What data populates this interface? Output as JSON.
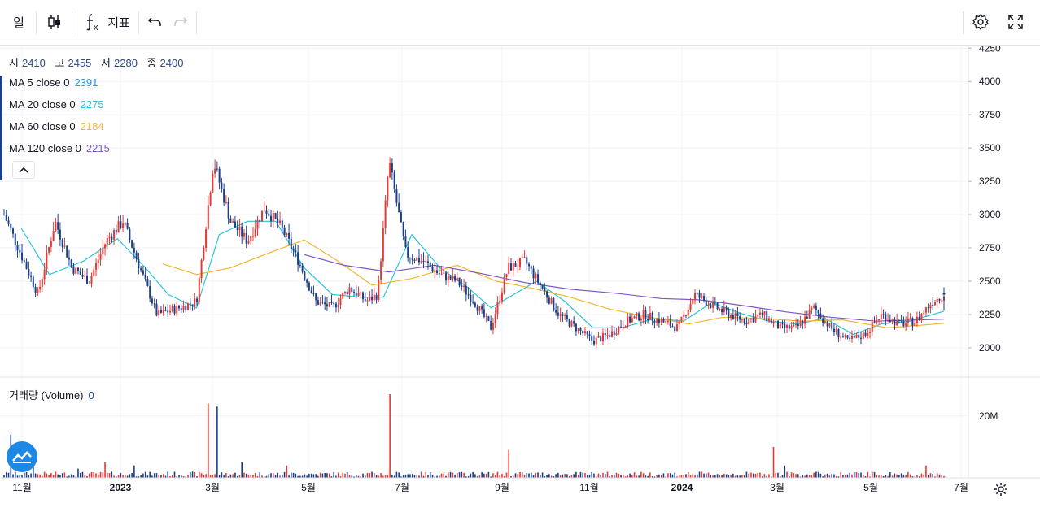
{
  "toolbar": {
    "interval_label": "일",
    "indicators_label": "지표",
    "icons": [
      "candles-icon",
      "fx-icon",
      "undo-icon",
      "redo-icon",
      "settings-icon",
      "fullscreen-icon"
    ]
  },
  "legend": {
    "ohlc": [
      {
        "label": "시",
        "value": "2410"
      },
      {
        "label": "고",
        "value": "2455"
      },
      {
        "label": "저",
        "value": "2280"
      },
      {
        "label": "종",
        "value": "2400"
      }
    ],
    "ma": [
      {
        "label": "MA 5 close 0",
        "value": "2391",
        "color": "#2196f3"
      },
      {
        "label": "MA 20 close 0",
        "value": "2275",
        "color": "#26c6da"
      },
      {
        "label": "MA 60 close 0",
        "value": "2184",
        "color": "#f2b72c"
      },
      {
        "label": "MA 120 close 0",
        "value": "2215",
        "color": "#7e57c2"
      }
    ],
    "volume_label": "거래량 (Volume)",
    "volume_value": "0"
  },
  "colors": {
    "up": "#e53935",
    "down": "#1a3f8c",
    "grid": "#f0f3fa",
    "axis_text": "#131722"
  },
  "chart_data": {
    "type": "candlestick",
    "price_axis": {
      "ticks": [
        2000,
        2250,
        2500,
        2750,
        3000,
        3250,
        3500,
        3750,
        4000,
        4250
      ],
      "labels": [
        "2000",
        "2250",
        "2500",
        "2750",
        "3000",
        "3250",
        "3500",
        "3750",
        "4000",
        "4250"
      ],
      "range": [
        1780,
        4270
      ]
    },
    "volume_axis": {
      "ticks": [
        "20M"
      ],
      "tick_values": [
        20000000
      ],
      "range": [
        0,
        32000000
      ]
    },
    "time_axis": {
      "labels": [
        "11월",
        "2023",
        "3월",
        "5월",
        "7월",
        "9월",
        "11월",
        "2024",
        "3월",
        "5월",
        "7월"
      ],
      "bold": [
        "2023",
        "2024"
      ]
    },
    "last": {
      "open": 2410,
      "high": 2455,
      "low": 2280,
      "close": 2400
    },
    "price_path": [
      {
        "m": 0,
        "p": 3000
      },
      {
        "m": 0.3,
        "p": 2700
      },
      {
        "m": 0.6,
        "p": 2400
      },
      {
        "m": 0.9,
        "p": 2950
      },
      {
        "m": 1.2,
        "p": 2600
      },
      {
        "m": 1.5,
        "p": 2500
      },
      {
        "m": 1.8,
        "p": 2800
      },
      {
        "m": 2.1,
        "p": 2950
      },
      {
        "m": 2.4,
        "p": 2600
      },
      {
        "m": 2.7,
        "p": 2250
      },
      {
        "m": 3.1,
        "p": 2300
      },
      {
        "m": 3.4,
        "p": 2350
      },
      {
        "m": 3.7,
        "p": 3400
      },
      {
        "m": 4.0,
        "p": 2950
      },
      {
        "m": 4.3,
        "p": 2800
      },
      {
        "m": 4.6,
        "p": 3050
      },
      {
        "m": 4.9,
        "p": 2900
      },
      {
        "m": 5.2,
        "p": 2650
      },
      {
        "m": 5.5,
        "p": 2350
      },
      {
        "m": 5.8,
        "p": 2300
      },
      {
        "m": 6.1,
        "p": 2450
      },
      {
        "m": 6.4,
        "p": 2350
      },
      {
        "m": 6.6,
        "p": 2400
      },
      {
        "m": 6.8,
        "p": 3400
      },
      {
        "m": 7.1,
        "p": 2700
      },
      {
        "m": 7.4,
        "p": 2650
      },
      {
        "m": 7.7,
        "p": 2550
      },
      {
        "m": 8.0,
        "p": 2500
      },
      {
        "m": 8.3,
        "p": 2350
      },
      {
        "m": 8.6,
        "p": 2150
      },
      {
        "m": 8.9,
        "p": 2600
      },
      {
        "m": 9.2,
        "p": 2650
      },
      {
        "m": 9.5,
        "p": 2450
      },
      {
        "m": 9.8,
        "p": 2250
      },
      {
        "m": 10.1,
        "p": 2150
      },
      {
        "m": 10.4,
        "p": 2050
      },
      {
        "m": 10.7,
        "p": 2100
      },
      {
        "m": 11.0,
        "p": 2200
      },
      {
        "m": 11.3,
        "p": 2250
      },
      {
        "m": 11.6,
        "p": 2200
      },
      {
        "m": 11.9,
        "p": 2150
      },
      {
        "m": 12.2,
        "p": 2400
      },
      {
        "m": 12.5,
        "p": 2320
      },
      {
        "m": 12.8,
        "p": 2250
      },
      {
        "m": 13.1,
        "p": 2200
      },
      {
        "m": 13.4,
        "p": 2250
      },
      {
        "m": 13.7,
        "p": 2150
      },
      {
        "m": 14.0,
        "p": 2150
      },
      {
        "m": 14.3,
        "p": 2300
      },
      {
        "m": 14.6,
        "p": 2150
      },
      {
        "m": 14.9,
        "p": 2050
      },
      {
        "m": 15.2,
        "p": 2100
      },
      {
        "m": 15.5,
        "p": 2250
      },
      {
        "m": 15.8,
        "p": 2180
      },
      {
        "m": 16.1,
        "p": 2200
      },
      {
        "m": 16.4,
        "p": 2350
      },
      {
        "m": 16.6,
        "p": 2400
      }
    ],
    "ma_paths": [
      {
        "name": "MA 20 close 0",
        "color": "#26c6da",
        "points": [
          {
            "m": 0.3,
            "p": 2900
          },
          {
            "m": 0.8,
            "p": 2550
          },
          {
            "m": 1.4,
            "p": 2650
          },
          {
            "m": 2.0,
            "p": 2820
          },
          {
            "m": 2.5,
            "p": 2600
          },
          {
            "m": 2.9,
            "p": 2400
          },
          {
            "m": 3.4,
            "p": 2300
          },
          {
            "m": 3.8,
            "p": 2850
          },
          {
            "m": 4.3,
            "p": 2950
          },
          {
            "m": 4.8,
            "p": 2950
          },
          {
            "m": 5.3,
            "p": 2600
          },
          {
            "m": 5.8,
            "p": 2400
          },
          {
            "m": 6.3,
            "p": 2380
          },
          {
            "m": 6.7,
            "p": 2380
          },
          {
            "m": 7.2,
            "p": 2850
          },
          {
            "m": 7.7,
            "p": 2600
          },
          {
            "m": 8.2,
            "p": 2450
          },
          {
            "m": 8.6,
            "p": 2300
          },
          {
            "m": 9.0,
            "p": 2400
          },
          {
            "m": 9.4,
            "p": 2500
          },
          {
            "m": 9.9,
            "p": 2350
          },
          {
            "m": 10.4,
            "p": 2150
          },
          {
            "m": 10.9,
            "p": 2150
          },
          {
            "m": 11.5,
            "p": 2220
          },
          {
            "m": 12.0,
            "p": 2200
          },
          {
            "m": 12.5,
            "p": 2340
          },
          {
            "m": 13.0,
            "p": 2260
          },
          {
            "m": 13.5,
            "p": 2200
          },
          {
            "m": 14.0,
            "p": 2180
          },
          {
            "m": 14.5,
            "p": 2220
          },
          {
            "m": 15.0,
            "p": 2100
          },
          {
            "m": 15.5,
            "p": 2180
          },
          {
            "m": 16.0,
            "p": 2200
          },
          {
            "m": 16.6,
            "p": 2275
          }
        ]
      },
      {
        "name": "MA 60 close 0",
        "color": "#f2b72c",
        "points": [
          {
            "m": 2.8,
            "p": 2630
          },
          {
            "m": 3.4,
            "p": 2550
          },
          {
            "m": 4.0,
            "p": 2600
          },
          {
            "m": 4.6,
            "p": 2700
          },
          {
            "m": 5.3,
            "p": 2810
          },
          {
            "m": 5.9,
            "p": 2650
          },
          {
            "m": 6.5,
            "p": 2470
          },
          {
            "m": 7.2,
            "p": 2520
          },
          {
            "m": 8.0,
            "p": 2620
          },
          {
            "m": 8.7,
            "p": 2500
          },
          {
            "m": 9.3,
            "p": 2450
          },
          {
            "m": 10.0,
            "p": 2380
          },
          {
            "m": 10.7,
            "p": 2290
          },
          {
            "m": 11.4,
            "p": 2230
          },
          {
            "m": 12.1,
            "p": 2180
          },
          {
            "m": 12.7,
            "p": 2230
          },
          {
            "m": 13.4,
            "p": 2220
          },
          {
            "m": 14.1,
            "p": 2200
          },
          {
            "m": 14.8,
            "p": 2210
          },
          {
            "m": 15.6,
            "p": 2150
          },
          {
            "m": 16.6,
            "p": 2184
          }
        ]
      },
      {
        "name": "MA 120 close 0",
        "color": "#7e57c2",
        "points": [
          {
            "m": 5.3,
            "p": 2700
          },
          {
            "m": 6.0,
            "p": 2620
          },
          {
            "m": 6.8,
            "p": 2570
          },
          {
            "m": 7.6,
            "p": 2620
          },
          {
            "m": 8.4,
            "p": 2560
          },
          {
            "m": 9.2,
            "p": 2490
          },
          {
            "m": 10.0,
            "p": 2440
          },
          {
            "m": 10.8,
            "p": 2410
          },
          {
            "m": 11.6,
            "p": 2370
          },
          {
            "m": 12.3,
            "p": 2360
          },
          {
            "m": 13.0,
            "p": 2320
          },
          {
            "m": 13.8,
            "p": 2270
          },
          {
            "m": 14.6,
            "p": 2230
          },
          {
            "m": 15.4,
            "p": 2200
          },
          {
            "m": 16.6,
            "p": 2215
          }
        ]
      }
    ],
    "volume_spikes_millions": [
      {
        "m": 0.1,
        "v": 14
      },
      {
        "m": 0.5,
        "v": 9
      },
      {
        "m": 1.3,
        "v": 3
      },
      {
        "m": 1.8,
        "v": 5
      },
      {
        "m": 2.3,
        "v": 4
      },
      {
        "m": 2.9,
        "v": 2
      },
      {
        "m": 3.6,
        "v": 24
      },
      {
        "m": 3.75,
        "v": 23
      },
      {
        "m": 4.2,
        "v": 5
      },
      {
        "m": 5.0,
        "v": 4
      },
      {
        "m": 6.8,
        "v": 27
      },
      {
        "m": 8.9,
        "v": 9
      },
      {
        "m": 13.6,
        "v": 10
      },
      {
        "m": 13.8,
        "v": 4
      },
      {
        "m": 16.3,
        "v": 4
      }
    ]
  }
}
